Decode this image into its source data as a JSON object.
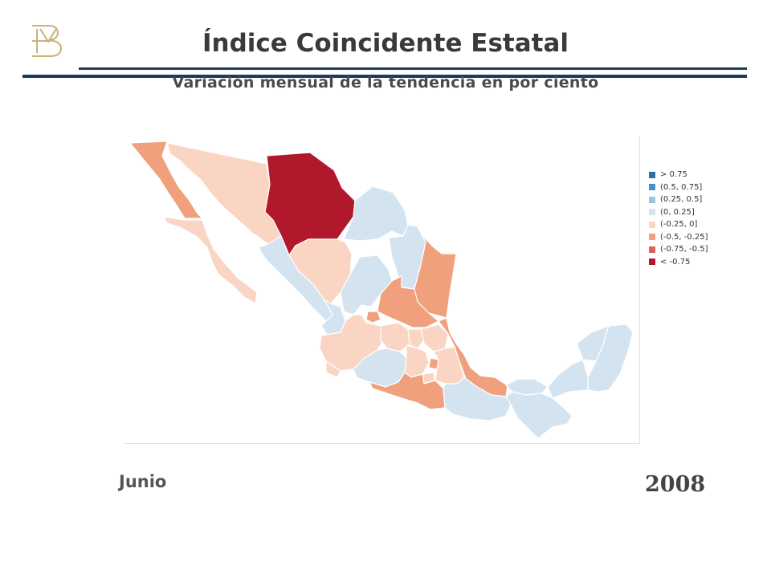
{
  "header": {
    "title": "Índice Coincidente Estatal",
    "subtitle": "Variación mensual de la tendencia en por ciento"
  },
  "footer": {
    "month": "Junio",
    "year": "2008"
  },
  "colors": {
    "gt_075": "#2f6ea8",
    "c_050_075": "#4c8fc2",
    "c_025_050": "#9ac5df",
    "c_000_025": "#d3e4f0",
    "c_m025_000": "#fbd5c3",
    "c_m050_m025": "#f0a07c",
    "c_m075_m050": "#dc6552",
    "lt_m075": "#b2182b",
    "rule": "#1c3b5a",
    "logo": "#c9b27a"
  },
  "legend": [
    {
      "label": "> 0.75",
      "color": "#2f6ea8"
    },
    {
      "label": "(0.5, 0.75]",
      "color": "#4c8fc2"
    },
    {
      "label": "(0.25, 0.5]",
      "color": "#9ac5df"
    },
    {
      "label": "(0, 0.25]",
      "color": "#d3e4f0"
    },
    {
      "label": "(-0.25, 0]",
      "color": "#fbd5c3"
    },
    {
      "label": "(-0.5, -0.25]",
      "color": "#f0a07c"
    },
    {
      "label": "(-0.75, -0.5]",
      "color": "#dc6552"
    },
    {
      "label": "< -0.75",
      "color": "#b2182b"
    }
  ]
}
